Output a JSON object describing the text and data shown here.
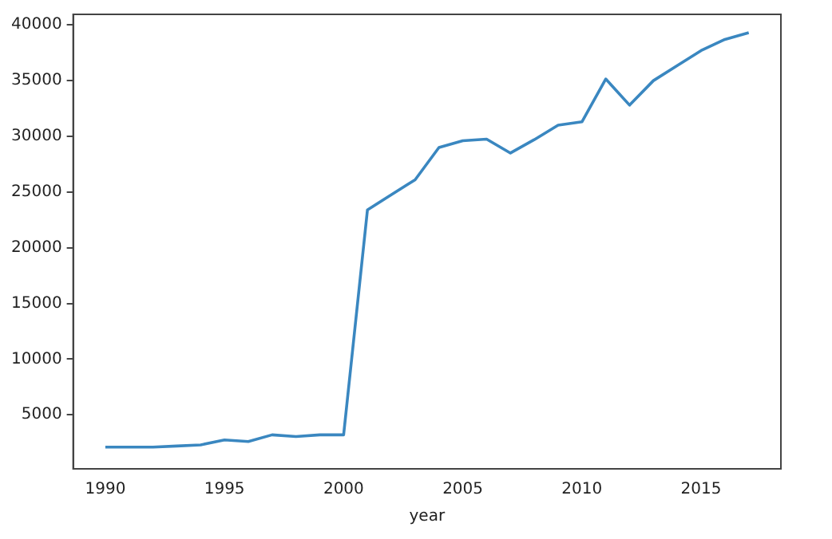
{
  "chart_data": {
    "type": "line",
    "xlabel": "year",
    "x": [
      1990,
      1991,
      1992,
      1993,
      1994,
      1995,
      1996,
      1997,
      1998,
      1999,
      2000,
      2001,
      2002,
      2003,
      2004,
      2005,
      2006,
      2007,
      2008,
      2009,
      2010,
      2011,
      2012,
      2013,
      2014,
      2015,
      2016,
      2017
    ],
    "series": [
      {
        "color": "#3a87c0",
        "values": [
          2100,
          2100,
          2100,
          2200,
          2300,
          2750,
          2600,
          3200,
          3050,
          3200,
          3200,
          23400,
          24750,
          26100,
          29000,
          29600,
          29750,
          28500,
          29700,
          31000,
          31300,
          35150,
          32800,
          35000,
          36350,
          37700,
          38700,
          39300
        ]
      }
    ],
    "xlim": [
      1988.65,
      2018.35
    ],
    "xticks": [
      1990,
      1995,
      2000,
      2005,
      2010,
      2015
    ],
    "ylim": [
      150,
      40950
    ],
    "yticks": [
      5000,
      10000,
      15000,
      20000,
      25000,
      30000,
      35000,
      40000
    ],
    "grid": false,
    "legend": false,
    "marker": "none",
    "line_style": "solid"
  }
}
